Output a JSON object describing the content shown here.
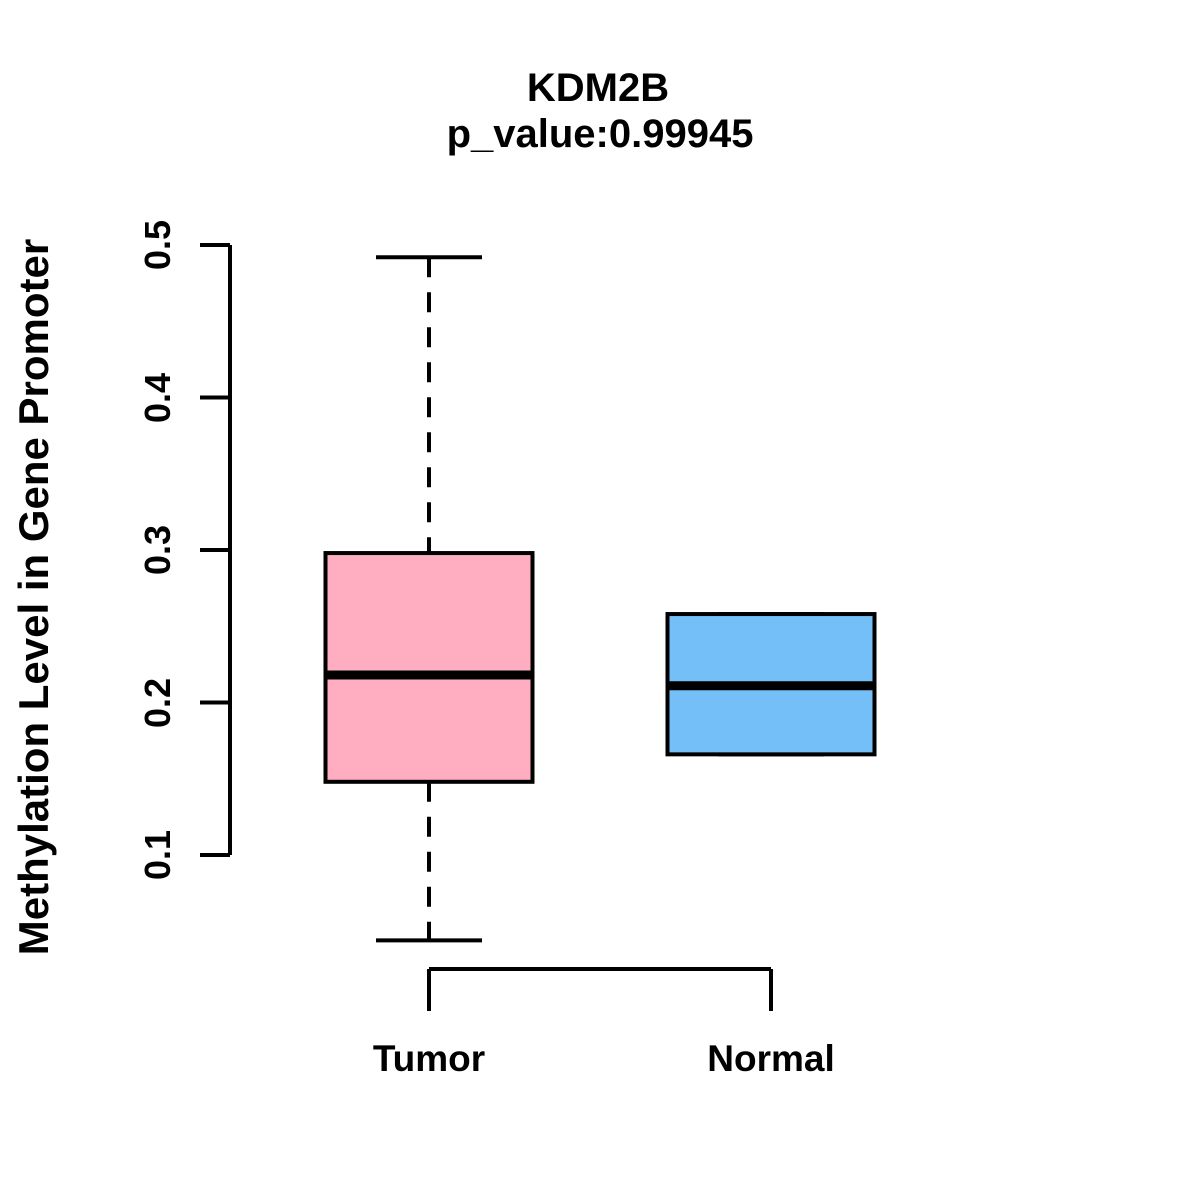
{
  "figure": {
    "background": "#FFFFFF",
    "text_color": "#000000",
    "line_color": "#000000"
  },
  "chart_data": {
    "type": "boxplot",
    "title": "KDM2B",
    "subtitle": "p_value:0.99945",
    "ylabel": "Methylation Level in Gene Promoter",
    "xlabel": "",
    "ylim": [
      0.04,
      0.5
    ],
    "yticks": [
      "0.1",
      "0.2",
      "0.3",
      "0.4",
      "0.5"
    ],
    "grid": false,
    "legend": "none",
    "groups": [
      {
        "label": "Tumor",
        "fill_color": "#FFADC1",
        "border_color": "#000000",
        "whisker_low": 0.044,
        "q1": 0.148,
        "median": 0.218,
        "q3": 0.298,
        "whisker_high": 0.492
      },
      {
        "label": "Normal",
        "fill_color": "#75BFF8",
        "border_color": "#000000",
        "whisker_low": 0.166,
        "q1": 0.166,
        "median": 0.211,
        "q3": 0.258,
        "whisker_high": 0.258
      }
    ]
  }
}
